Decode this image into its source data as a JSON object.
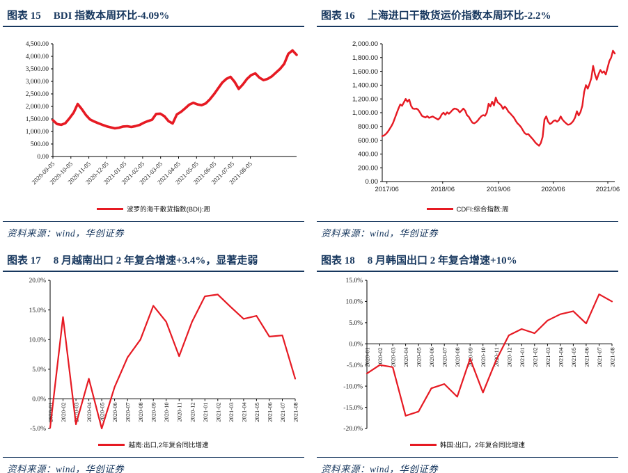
{
  "page": {
    "accent_color": "#17375e",
    "line_color": "#e61a23",
    "source_text": "资料来源：wind，华创证券"
  },
  "panels": [
    {
      "fig": "图表 15",
      "title": "BDI 指数本周环比-4.09%"
    },
    {
      "fig": "图表 16",
      "title": "上海进口干散货运价指数本周环比-2.2%"
    },
    {
      "fig": "图表 17",
      "title": "8 月越南出口 2 年复合增速+3.4%，显著走弱"
    },
    {
      "fig": "图表 18",
      "title": "8 月韩国出口 2 年复合增速+10%"
    }
  ],
  "chart_data": [
    {
      "type": "line",
      "title": "BDI 指数本周环比-4.09%",
      "legend": "波罗的海干散货指数(BDI):周",
      "ylim": [
        0,
        4500
      ],
      "yticks": [
        {
          "v": 0,
          "label": "0.00"
        },
        {
          "v": 500,
          "label": "500.00"
        },
        {
          "v": 1000,
          "label": "1,000.00"
        },
        {
          "v": 1500,
          "label": "1,500.00"
        },
        {
          "v": 2000,
          "label": "2,000.00"
        },
        {
          "v": 2500,
          "label": "2,500.00"
        },
        {
          "v": 3000,
          "label": "3,000.00"
        },
        {
          "v": 3500,
          "label": "3,500.00"
        },
        {
          "v": 4000,
          "label": "4,000.00"
        },
        {
          "v": 4500,
          "label": "4,500.00"
        }
      ],
      "xticks": [
        {
          "pos": 0,
          "label": "2020-09-05"
        },
        {
          "pos": 0.0737,
          "label": "2020-10-05"
        },
        {
          "pos": 0.1473,
          "label": "2020-11-05"
        },
        {
          "pos": 0.221,
          "label": "2020-12-05"
        },
        {
          "pos": 0.2946,
          "label": "2021-01-05"
        },
        {
          "pos": 0.3683,
          "label": "2021-02-05"
        },
        {
          "pos": 0.442,
          "label": "2021-03-05"
        },
        {
          "pos": 0.5156,
          "label": "2021-04-05"
        },
        {
          "pos": 0.5893,
          "label": "2021-05-05"
        },
        {
          "pos": 0.6629,
          "label": "2021-06-05"
        },
        {
          "pos": 0.7366,
          "label": "2021-07-05"
        },
        {
          "pos": 0.8103,
          "label": "2021-08-05"
        }
      ],
      "values": [
        1451,
        1296,
        1267,
        1328,
        1522,
        1748,
        2097,
        1893,
        1652,
        1477,
        1396,
        1328,
        1264,
        1205,
        1165,
        1124,
        1150,
        1196,
        1208,
        1180,
        1215,
        1260,
        1347,
        1415,
        1468,
        1700,
        1710,
        1605,
        1410,
        1320,
        1680,
        1780,
        1920,
        2070,
        2145,
        2080,
        2050,
        2120,
        2280,
        2490,
        2720,
        2950,
        3100,
        3180,
        2980,
        2700,
        2880,
        3100,
        3250,
        3320,
        3150,
        3050,
        3100,
        3200,
        3350,
        3500,
        3700,
        4100,
        4235,
        4062
      ]
    },
    {
      "type": "line",
      "title": "上海进口干散货运价指数本周环比-2.2%",
      "legend": "CDFI:综合指数:周",
      "ylim": [
        0,
        2000
      ],
      "yticks": [
        {
          "v": 0,
          "label": "0.00"
        },
        {
          "v": 200,
          "label": "200.00"
        },
        {
          "v": 400,
          "label": "400.00"
        },
        {
          "v": 600,
          "label": "600.00"
        },
        {
          "v": 800,
          "label": "800.00"
        },
        {
          "v": 1000,
          "label": "1,000.00"
        },
        {
          "v": 1200,
          "label": "1,200.00"
        },
        {
          "v": 1400,
          "label": "1,400.00"
        },
        {
          "v": 1600,
          "label": "1,600.00"
        },
        {
          "v": 1800,
          "label": "1,800.00"
        },
        {
          "v": 2000,
          "label": "2,000.00"
        }
      ],
      "xticks": [
        {
          "pos": 0.02,
          "label": "2017/06"
        },
        {
          "pos": 0.26,
          "label": "2018/06"
        },
        {
          "pos": 0.5,
          "label": "2019/06"
        },
        {
          "pos": 0.735,
          "label": "2020/06"
        },
        {
          "pos": 0.97,
          "label": "2021/06"
        }
      ],
      "values": [
        660,
        670,
        690,
        720,
        760,
        800,
        850,
        920,
        990,
        1060,
        1120,
        1100,
        1150,
        1200,
        1160,
        1190,
        1100,
        1060,
        1055,
        1060,
        1040,
        1000,
        955,
        940,
        930,
        950,
        925,
        935,
        945,
        930,
        915,
        900,
        925,
        975,
        1000,
        970,
        1005,
        985,
        1010,
        1040,
        1060,
        1055,
        1040,
        1005,
        1030,
        1060,
        1030,
        965,
        940,
        895,
        855,
        845,
        860,
        885,
        920,
        950,
        965,
        955,
        1000,
        1130,
        1090,
        1160,
        1105,
        1220,
        1150,
        1130,
        1105,
        1055,
        1090,
        1060,
        1015,
        990,
        960,
        930,
        885,
        845,
        820,
        790,
        745,
        705,
        685,
        690,
        660,
        630,
        600,
        565,
        540,
        520,
        560,
        650,
        900,
        945,
        870,
        835,
        850,
        880,
        890,
        870,
        890,
        945,
        900,
        870,
        845,
        825,
        830,
        850,
        880,
        930,
        1020,
        960,
        1010,
        1100,
        1300,
        1400,
        1350,
        1420,
        1500,
        1680,
        1560,
        1480,
        1560,
        1620,
        1580,
        1600,
        1555,
        1650,
        1750,
        1800,
        1900,
        1860
      ]
    },
    {
      "type": "line",
      "title": "8 月越南出口 2 年复合增速+3.4%，显著走弱",
      "legend": "越南:出口,2年复合同比增速",
      "ylim": [
        -5,
        20
      ],
      "x_axis_at_zero": true,
      "yticks": [
        {
          "v": -5,
          "label": "-5.0%"
        },
        {
          "v": 0,
          "label": "0.0%"
        },
        {
          "v": 5,
          "label": "5.0%"
        },
        {
          "v": 10,
          "label": "10.0%"
        },
        {
          "v": 15,
          "label": "15.0%"
        },
        {
          "v": 20,
          "label": "20.0%"
        }
      ],
      "xticks": [
        {
          "pos": 0,
          "label": "2020-01"
        },
        {
          "pos": 0.0526,
          "label": "2020-02"
        },
        {
          "pos": 0.1053,
          "label": "2020-03"
        },
        {
          "pos": 0.1579,
          "label": "2020-04"
        },
        {
          "pos": 0.2105,
          "label": "2020-05"
        },
        {
          "pos": 0.2632,
          "label": "2020-06"
        },
        {
          "pos": 0.3158,
          "label": "2020-07"
        },
        {
          "pos": 0.3684,
          "label": "2020-08"
        },
        {
          "pos": 0.4211,
          "label": "2020-09"
        },
        {
          "pos": 0.4737,
          "label": "2020-10"
        },
        {
          "pos": 0.5263,
          "label": "2020-11"
        },
        {
          "pos": 0.5789,
          "label": "2020-12"
        },
        {
          "pos": 0.6316,
          "label": "2021-01"
        },
        {
          "pos": 0.6842,
          "label": "2021-02"
        },
        {
          "pos": 0.7368,
          "label": "2021-03"
        },
        {
          "pos": 0.7895,
          "label": "2021-04"
        },
        {
          "pos": 0.8421,
          "label": "2021-05"
        },
        {
          "pos": 0.8947,
          "label": "2021-06"
        },
        {
          "pos": 0.9474,
          "label": "2021-07"
        },
        {
          "pos": 1,
          "label": "2021-08"
        }
      ],
      "values": [
        -4.9,
        13.8,
        -4.3,
        3.4,
        -5.0,
        2.0,
        7.0,
        10.0,
        15.7,
        13.0,
        7.2,
        13.0,
        17.3,
        17.6,
        15.5,
        13.5,
        14.0,
        10.5,
        10.7,
        3.4
      ]
    },
    {
      "type": "line",
      "title": "8 月韩国出口 2 年复合增速+10%",
      "legend": "韩国:出口，2年复合同比增速",
      "ylim": [
        -20,
        15
      ],
      "x_axis_at_zero": true,
      "yticks": [
        {
          "v": -20,
          "label": "-20.0%"
        },
        {
          "v": -15,
          "label": "-15.0%"
        },
        {
          "v": -10,
          "label": "-10.0%"
        },
        {
          "v": -5,
          "label": "-5.0%"
        },
        {
          "v": 0,
          "label": "0.0%"
        },
        {
          "v": 5,
          "label": "5.0%"
        },
        {
          "v": 10,
          "label": "10.0%"
        },
        {
          "v": 15,
          "label": "15.0%"
        }
      ],
      "xticks": [
        {
          "pos": 0,
          "label": "2020-01"
        },
        {
          "pos": 0.0526,
          "label": "2020-02"
        },
        {
          "pos": 0.1053,
          "label": "2020-03"
        },
        {
          "pos": 0.1579,
          "label": "2020-04"
        },
        {
          "pos": 0.2105,
          "label": "2020-05"
        },
        {
          "pos": 0.2632,
          "label": "2020-06"
        },
        {
          "pos": 0.3158,
          "label": "2020-07"
        },
        {
          "pos": 0.3684,
          "label": "2020-08"
        },
        {
          "pos": 0.4211,
          "label": "2020-09"
        },
        {
          "pos": 0.4737,
          "label": "2020-10"
        },
        {
          "pos": 0.5263,
          "label": "2020-11"
        },
        {
          "pos": 0.5789,
          "label": "2020-12"
        },
        {
          "pos": 0.6316,
          "label": "2021-01"
        },
        {
          "pos": 0.6842,
          "label": "2021-02"
        },
        {
          "pos": 0.7368,
          "label": "2021-03"
        },
        {
          "pos": 0.7895,
          "label": "2021-04"
        },
        {
          "pos": 0.8421,
          "label": "2021-05"
        },
        {
          "pos": 0.8947,
          "label": "2021-06"
        },
        {
          "pos": 0.9474,
          "label": "2021-07"
        },
        {
          "pos": 1,
          "label": "2021-08"
        }
      ],
      "values": [
        -7.0,
        -5.0,
        -5.5,
        -17.0,
        -16.0,
        -10.5,
        -9.5,
        -12.5,
        -3.5,
        -11.5,
        -4.0,
        2.0,
        3.5,
        2.5,
        5.5,
        7.0,
        7.7,
        4.8,
        11.7,
        10.0
      ]
    }
  ]
}
